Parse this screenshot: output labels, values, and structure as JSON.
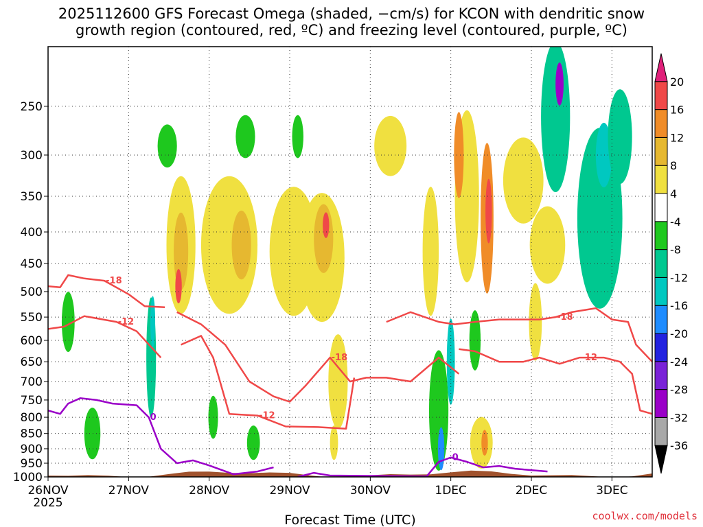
{
  "chart_data": {
    "type": "heatmap",
    "title_line1": "2025112600 GFS Forecast Omega (shaded, −cm/s) for KCON with dendritic snow",
    "title_line2": "growth region (contoured, red, ºC) and freezing level (contoured, purple, ºC)",
    "xlabel": "Forecast Time (UTC)",
    "ylabel": "",
    "y_axis": {
      "range": [
        1000,
        200
      ],
      "scale": "log",
      "ticks": [
        250,
        300,
        350,
        400,
        450,
        500,
        550,
        600,
        650,
        700,
        750,
        800,
        850,
        900,
        950,
        1000
      ]
    },
    "x_axis": {
      "range": [
        0,
        7.5
      ],
      "ticks": [
        {
          "v": 0,
          "label": "26NOV",
          "sub": "2025"
        },
        {
          "v": 1,
          "label": "27NOV",
          "sub": ""
        },
        {
          "v": 2,
          "label": "28NOV",
          "sub": ""
        },
        {
          "v": 3,
          "label": "29NOV",
          "sub": ""
        },
        {
          "v": 4,
          "label": "30NOV",
          "sub": ""
        },
        {
          "v": 5,
          "label": "1DEC",
          "sub": ""
        },
        {
          "v": 6,
          "label": "2DEC",
          "sub": ""
        },
        {
          "v": 7,
          "label": "3DEC",
          "sub": ""
        }
      ]
    },
    "colorbar": {
      "colors": [
        "#000000",
        "#a8a8a8",
        "#9a00c8",
        "#7a22d8",
        "#2222e0",
        "#1e8cff",
        "#00c8c0",
        "#00c890",
        "#1ec81e",
        "#ffffff",
        "#f0e040",
        "#e6b830",
        "#f08c28",
        "#f04848",
        "#e0207a"
      ],
      "labels": [
        "-36",
        "-32",
        "-28",
        "-24",
        "-20",
        "-16",
        "-12",
        "-8",
        "-4",
        "4",
        "8",
        "12",
        "16",
        "20"
      ]
    },
    "shaded_blobs": [
      {
        "t": 0.25,
        "p": 560,
        "w": 0.08,
        "h": 0.14,
        "v": -6
      },
      {
        "t": 0.55,
        "p": 850,
        "w": 0.1,
        "h": 0.12,
        "v": -6
      },
      {
        "t": 1.28,
        "p": 640,
        "w": 0.06,
        "h": 0.28,
        "v": -8
      },
      {
        "t": 1.3,
        "p": 560,
        "w": 0.03,
        "h": 0.12,
        "v": -14
      },
      {
        "t": 1.48,
        "p": 290,
        "w": 0.12,
        "h": 0.1,
        "v": -5
      },
      {
        "t": 1.65,
        "p": 420,
        "w": 0.18,
        "h": 0.32,
        "v": 6
      },
      {
        "t": 1.65,
        "p": 430,
        "w": 0.09,
        "h": 0.18,
        "v": 11
      },
      {
        "t": 1.62,
        "p": 490,
        "w": 0.04,
        "h": 0.08,
        "v": 16
      },
      {
        "t": 2.25,
        "p": 420,
        "w": 0.35,
        "h": 0.32,
        "v": 5
      },
      {
        "t": 2.4,
        "p": 420,
        "w": 0.12,
        "h": 0.16,
        "v": 9
      },
      {
        "t": 2.05,
        "p": 800,
        "w": 0.06,
        "h": 0.1,
        "v": -6
      },
      {
        "t": 2.45,
        "p": 280,
        "w": 0.12,
        "h": 0.1,
        "v": -5
      },
      {
        "t": 2.55,
        "p": 880,
        "w": 0.08,
        "h": 0.08,
        "v": -6
      },
      {
        "t": 3.05,
        "p": 430,
        "w": 0.3,
        "h": 0.3,
        "v": 5
      },
      {
        "t": 3.1,
        "p": 280,
        "w": 0.07,
        "h": 0.1,
        "v": -5
      },
      {
        "t": 3.4,
        "p": 440,
        "w": 0.28,
        "h": 0.3,
        "v": 6
      },
      {
        "t": 3.42,
        "p": 410,
        "w": 0.12,
        "h": 0.16,
        "v": 11
      },
      {
        "t": 3.45,
        "p": 390,
        "w": 0.04,
        "h": 0.06,
        "v": 16
      },
      {
        "t": 3.6,
        "p": 700,
        "w": 0.12,
        "h": 0.22,
        "v": 7
      },
      {
        "t": 3.55,
        "p": 880,
        "w": 0.05,
        "h": 0.08,
        "v": 5
      },
      {
        "t": 4.25,
        "p": 290,
        "w": 0.2,
        "h": 0.14,
        "v": 4.5
      },
      {
        "t": 4.75,
        "p": 430,
        "w": 0.1,
        "h": 0.3,
        "v": 4.5
      },
      {
        "t": 4.85,
        "p": 780,
        "w": 0.12,
        "h": 0.28,
        "v": -7
      },
      {
        "t": 4.88,
        "p": 900,
        "w": 0.04,
        "h": 0.1,
        "v": -18
      },
      {
        "t": 5.0,
        "p": 650,
        "w": 0.05,
        "h": 0.2,
        "v": -12
      },
      {
        "t": 5.2,
        "p": 350,
        "w": 0.15,
        "h": 0.4,
        "v": 5
      },
      {
        "t": 5.1,
        "p": 300,
        "w": 0.06,
        "h": 0.2,
        "v": 12
      },
      {
        "t": 5.45,
        "p": 380,
        "w": 0.08,
        "h": 0.35,
        "v": 12
      },
      {
        "t": 5.47,
        "p": 370,
        "w": 0.04,
        "h": 0.15,
        "v": 18
      },
      {
        "t": 5.3,
        "p": 600,
        "w": 0.07,
        "h": 0.14,
        "v": -7
      },
      {
        "t": 5.38,
        "p": 880,
        "w": 0.14,
        "h": 0.12,
        "v": 7
      },
      {
        "t": 5.42,
        "p": 880,
        "w": 0.04,
        "h": 0.06,
        "v": 12
      },
      {
        "t": 5.9,
        "p": 330,
        "w": 0.25,
        "h": 0.2,
        "v": 4.5
      },
      {
        "t": 6.05,
        "p": 560,
        "w": 0.08,
        "h": 0.18,
        "v": 5
      },
      {
        "t": 6.3,
        "p": 260,
        "w": 0.18,
        "h": 0.35,
        "v": -8
      },
      {
        "t": 6.35,
        "p": 230,
        "w": 0.05,
        "h": 0.1,
        "v": -28
      },
      {
        "t": 6.85,
        "p": 380,
        "w": 0.28,
        "h": 0.42,
        "v": -9
      },
      {
        "t": 6.9,
        "p": 300,
        "w": 0.1,
        "h": 0.15,
        "v": -14
      },
      {
        "t": 7.1,
        "p": 280,
        "w": 0.15,
        "h": 0.22,
        "v": -8
      },
      {
        "t": 6.2,
        "p": 420,
        "w": 0.22,
        "h": 0.18,
        "v": 4.5
      }
    ],
    "red_contours": [
      {
        "label": "-18",
        "points": [
          [
            0,
            490
          ],
          [
            0.15,
            492
          ],
          [
            0.25,
            470
          ],
          [
            0.45,
            476
          ],
          [
            0.7,
            480
          ],
          [
            1.0,
            505
          ],
          [
            1.2,
            528
          ],
          [
            1.45,
            530
          ]
        ]
      },
      {
        "label": "-12",
        "points": [
          [
            0,
            575
          ],
          [
            0.2,
            570
          ],
          [
            0.45,
            548
          ],
          [
            0.85,
            560
          ],
          [
            1.1,
            580
          ],
          [
            1.4,
            640
          ]
        ]
      },
      {
        "label": "-18",
        "points": [
          [
            1.6,
            540
          ],
          [
            1.9,
            565
          ],
          [
            2.2,
            610
          ],
          [
            2.5,
            700
          ],
          [
            2.8,
            740
          ],
          [
            3.0,
            755
          ],
          [
            3.2,
            710
          ],
          [
            3.5,
            640
          ],
          [
            3.75,
            700
          ],
          [
            3.95,
            690
          ],
          [
            4.2,
            690
          ],
          [
            4.5,
            700
          ],
          [
            4.85,
            640
          ],
          [
            5.1,
            680
          ]
        ]
      },
      {
        "label": "-12",
        "points": [
          [
            1.65,
            610
          ],
          [
            1.9,
            590
          ],
          [
            2.05,
            640
          ],
          [
            2.25,
            790
          ],
          [
            2.6,
            795
          ],
          [
            2.95,
            828
          ],
          [
            3.35,
            830
          ],
          [
            3.7,
            835
          ],
          [
            3.8,
            690
          ]
        ]
      },
      {
        "label": "-18",
        "points": [
          [
            4.2,
            560
          ],
          [
            4.5,
            540
          ],
          [
            4.85,
            560
          ],
          [
            5.05,
            565
          ],
          [
            5.3,
            560
          ],
          [
            5.6,
            555
          ],
          [
            6.1,
            555
          ],
          [
            6.3,
            550
          ],
          [
            6.5,
            540
          ],
          [
            6.8,
            532
          ],
          [
            7.0,
            555
          ],
          [
            7.2,
            560
          ],
          [
            7.3,
            610
          ],
          [
            7.5,
            650
          ]
        ]
      },
      {
        "label": "-12",
        "points": [
          [
            5.1,
            620
          ],
          [
            5.3,
            625
          ],
          [
            5.6,
            650
          ],
          [
            5.9,
            650
          ],
          [
            6.1,
            640
          ],
          [
            6.35,
            655
          ],
          [
            6.6,
            640
          ],
          [
            6.9,
            640
          ],
          [
            7.1,
            650
          ],
          [
            7.25,
            680
          ],
          [
            7.35,
            780
          ],
          [
            7.5,
            790
          ]
        ]
      }
    ],
    "purple_contours": [
      {
        "label": "0",
        "points": [
          [
            0,
            780
          ],
          [
            0.15,
            790
          ],
          [
            0.25,
            760
          ],
          [
            0.4,
            745
          ],
          [
            0.6,
            750
          ],
          [
            0.8,
            760
          ],
          [
            1.1,
            765
          ],
          [
            1.25,
            800
          ],
          [
            1.4,
            900
          ],
          [
            1.6,
            950
          ],
          [
            1.8,
            940
          ],
          [
            2.0,
            958
          ],
          [
            2.3,
            990
          ],
          [
            2.6,
            980
          ],
          [
            2.8,
            965
          ]
        ]
      },
      {
        "label": "0",
        "points": [
          [
            3.1,
            1000
          ],
          [
            3.3,
            985
          ],
          [
            3.5,
            995
          ],
          [
            4.7,
            998
          ],
          [
            4.85,
            945
          ],
          [
            5.0,
            930
          ],
          [
            5.2,
            945
          ],
          [
            5.4,
            965
          ],
          [
            5.6,
            960
          ],
          [
            5.8,
            970
          ],
          [
            6.2,
            980
          ]
        ]
      }
    ],
    "x_axis_label_credit": "coolwx.com/models"
  }
}
